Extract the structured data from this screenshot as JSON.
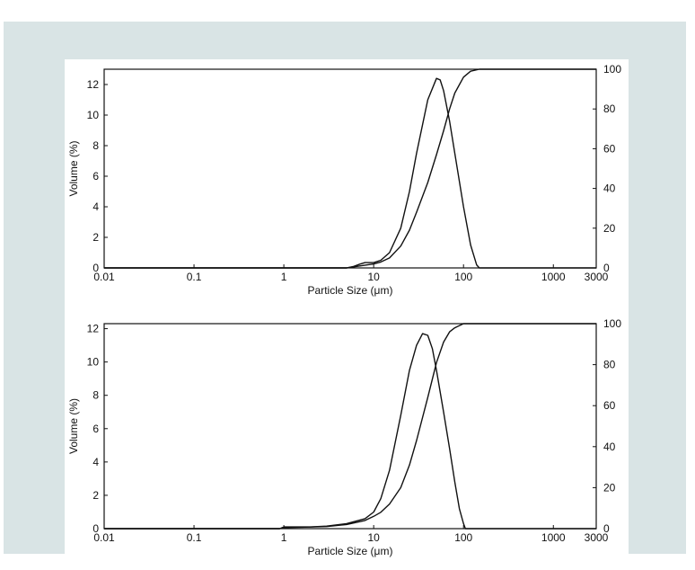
{
  "chart_data": [
    {
      "type": "line",
      "xlabel": "Particle Size (μm)",
      "ylabel": "Volume (%)",
      "x_scale": "log",
      "xlim": [
        0.01,
        3000
      ],
      "ylim": [
        0,
        13
      ],
      "y2lim": [
        0,
        100
      ],
      "x_ticks": [
        "0.01",
        "0.1",
        "1",
        "10",
        "100",
        "1000",
        "3000"
      ],
      "y_ticks": [
        "0",
        "2",
        "4",
        "6",
        "8",
        "10",
        "12"
      ],
      "y2_ticks": [
        "0",
        "20",
        "40",
        "60",
        "80",
        "100"
      ],
      "series": [
        {
          "axis": "left",
          "x": [
            0.01,
            5,
            6,
            7,
            8,
            9,
            10,
            12,
            15,
            20,
            25,
            30,
            40,
            50,
            55,
            60,
            70,
            80,
            100,
            120,
            140,
            150,
            3000
          ],
          "values": [
            0,
            0,
            0.1,
            0.25,
            0.35,
            0.35,
            0.35,
            0.5,
            1.0,
            2.6,
            5.0,
            7.5,
            11.0,
            12.4,
            12.3,
            11.6,
            9.6,
            7.5,
            4.0,
            1.5,
            0.2,
            0,
            0
          ]
        },
        {
          "axis": "right",
          "x": [
            0.01,
            5,
            7,
            10,
            12,
            15,
            20,
            25,
            30,
            40,
            50,
            60,
            70,
            80,
            100,
            120,
            150,
            3000
          ],
          "values": [
            0,
            0,
            1,
            2,
            3,
            5,
            11,
            19,
            28,
            43,
            57,
            69,
            80,
            88,
            96,
            99,
            100,
            100
          ]
        }
      ]
    },
    {
      "type": "line",
      "xlabel": "Particle Size (μm)",
      "ylabel": "Volume (%)",
      "x_scale": "log",
      "xlim": [
        0.01,
        3000
      ],
      "ylim": [
        0,
        12.3
      ],
      "y2lim": [
        0,
        100
      ],
      "x_ticks": [
        "0.01",
        "0.1",
        "1",
        "10",
        "100",
        "1000",
        "3000"
      ],
      "y_ticks": [
        "0",
        "2",
        "4",
        "6",
        "8",
        "10",
        "12"
      ],
      "y2_ticks": [
        "0",
        "20",
        "40",
        "60",
        "80",
        "100"
      ],
      "series": [
        {
          "axis": "left",
          "x": [
            0.01,
            0.9,
            1,
            2,
            3,
            5,
            8,
            10,
            12,
            15,
            20,
            25,
            30,
            35,
            40,
            45,
            50,
            60,
            70,
            80,
            90,
            100,
            105,
            3000
          ],
          "values": [
            0,
            0,
            0.1,
            0.1,
            0.15,
            0.3,
            0.6,
            1.0,
            1.8,
            3.5,
            6.8,
            9.5,
            11.0,
            11.7,
            11.6,
            10.8,
            9.5,
            7.0,
            4.8,
            2.8,
            1.2,
            0.3,
            0,
            0
          ]
        },
        {
          "axis": "right",
          "x": [
            0.01,
            0.9,
            1,
            3,
            5,
            8,
            10,
            12,
            15,
            20,
            25,
            30,
            40,
            50,
            60,
            70,
            80,
            100,
            120,
            3000
          ],
          "values": [
            0,
            0,
            0.5,
            1,
            2,
            4,
            6,
            8,
            12,
            20,
            31,
            43,
            64,
            81,
            91,
            96,
            98,
            100,
            100,
            100
          ]
        }
      ]
    }
  ]
}
